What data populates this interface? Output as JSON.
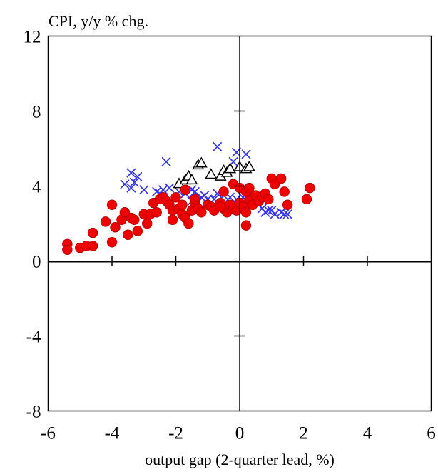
{
  "chart_data": {
    "type": "scatter",
    "ylabel": "CPI, y/y % chg.",
    "xlabel": "output gap (2-quarter lead, %)",
    "xlim": [
      -6,
      6
    ],
    "ylim": [
      -8,
      12
    ],
    "x_ticks": [
      -6,
      -4,
      -2,
      0,
      2,
      4,
      6
    ],
    "x_tick_labels": [
      "-6",
      "-4",
      "-2",
      "0",
      "2",
      "4",
      "6"
    ],
    "y_ticks": [
      -8,
      -4,
      0,
      4,
      8,
      12
    ],
    "y_tick_labels": [
      "-8",
      "-4",
      "0",
      "4",
      "8",
      "12"
    ],
    "grid": false,
    "legend": "none",
    "series": [
      {
        "marker": "cross",
        "color": "#3333ee",
        "points": [
          [
            -3.6,
            4.1
          ],
          [
            -3.4,
            4.7
          ],
          [
            -3.3,
            4.2
          ],
          [
            -3.2,
            4.5
          ],
          [
            -3.4,
            3.9
          ],
          [
            -3.0,
            3.8
          ],
          [
            -2.6,
            3.7
          ],
          [
            -2.5,
            3.6
          ],
          [
            -2.4,
            3.8
          ],
          [
            -2.2,
            3.9
          ],
          [
            -2.3,
            5.3
          ],
          [
            -1.9,
            3.7
          ],
          [
            -1.7,
            3.6
          ],
          [
            -1.5,
            3.8
          ],
          [
            -1.4,
            3.7
          ],
          [
            -1.2,
            3.4
          ],
          [
            -1.1,
            3.5
          ],
          [
            -1.0,
            3.3
          ],
          [
            -0.8,
            3.3
          ],
          [
            -0.7,
            3.6
          ],
          [
            -0.5,
            3.5
          ],
          [
            -0.3,
            3.4
          ],
          [
            -0.1,
            3.3
          ],
          [
            0.1,
            3.4
          ],
          [
            -0.7,
            6.1
          ],
          [
            -0.1,
            5.8
          ],
          [
            0.2,
            5.7
          ],
          [
            -0.2,
            5.3
          ],
          [
            0.6,
            3.0
          ],
          [
            0.7,
            2.8
          ],
          [
            0.8,
            2.6
          ],
          [
            1.0,
            2.7
          ],
          [
            1.1,
            2.5
          ],
          [
            1.3,
            2.6
          ],
          [
            1.4,
            2.5
          ],
          [
            1.5,
            2.5
          ],
          [
            0.9,
            2.7
          ],
          [
            -1.5,
            3.2
          ],
          [
            -0.4,
            2.8
          ]
        ]
      },
      {
        "marker": "triangle",
        "color": "#000000",
        "points": [
          [
            -1.9,
            4.1
          ],
          [
            -1.7,
            4.3
          ],
          [
            -1.6,
            4.5
          ],
          [
            -1.5,
            4.3
          ],
          [
            -1.3,
            5.1
          ],
          [
            -1.2,
            5.2
          ],
          [
            -0.9,
            4.6
          ],
          [
            -0.6,
            4.5
          ],
          [
            -0.5,
            4.8
          ],
          [
            -0.4,
            4.7
          ],
          [
            -0.3,
            4.9
          ],
          [
            0.0,
            5.0
          ],
          [
            0.2,
            4.9
          ],
          [
            0.3,
            5.0
          ]
        ]
      },
      {
        "marker": "circle",
        "color": "#ee0000",
        "points": [
          [
            -5.4,
            0.9
          ],
          [
            -5.4,
            0.6
          ],
          [
            -5.0,
            0.7
          ],
          [
            -4.8,
            0.8
          ],
          [
            -4.6,
            0.8
          ],
          [
            -4.6,
            1.5
          ],
          [
            -4.0,
            1.0
          ],
          [
            -3.9,
            1.8
          ],
          [
            -4.0,
            3.0
          ],
          [
            -4.2,
            2.1
          ],
          [
            -3.7,
            2.2
          ],
          [
            -3.6,
            2.6
          ],
          [
            -3.5,
            1.4
          ],
          [
            -3.4,
            2.3
          ],
          [
            -3.3,
            2.2
          ],
          [
            -3.2,
            1.6
          ],
          [
            -3.0,
            2.5
          ],
          [
            -2.9,
            2.0
          ],
          [
            -2.8,
            2.5
          ],
          [
            -2.7,
            3.1
          ],
          [
            -2.6,
            2.6
          ],
          [
            -2.5,
            3.3
          ],
          [
            -2.4,
            3.4
          ],
          [
            -2.3,
            3.2
          ],
          [
            -2.2,
            3.0
          ],
          [
            -2.1,
            2.7
          ],
          [
            -2.0,
            3.4
          ],
          [
            -2.1,
            2.2
          ],
          [
            -1.9,
            2.8
          ],
          [
            -1.8,
            2.5
          ],
          [
            -1.8,
            3.0
          ],
          [
            -1.7,
            2.3
          ],
          [
            -1.6,
            2.0
          ],
          [
            -1.7,
            3.8
          ],
          [
            -1.5,
            2.7
          ],
          [
            -1.4,
            3.1
          ],
          [
            -1.3,
            2.8
          ],
          [
            -1.2,
            2.6
          ],
          [
            -1.0,
            3.0
          ],
          [
            -0.9,
            2.9
          ],
          [
            -0.8,
            2.7
          ],
          [
            -0.6,
            3.1
          ],
          [
            -0.5,
            2.8
          ],
          [
            -0.4,
            2.6
          ],
          [
            -0.3,
            3.0
          ],
          [
            -0.2,
            2.8
          ],
          [
            -0.1,
            2.7
          ],
          [
            0.0,
            3.1
          ],
          [
            0.1,
            2.9
          ],
          [
            0.2,
            2.6
          ],
          [
            0.3,
            3.3
          ],
          [
            0.4,
            3.0
          ],
          [
            0.5,
            3.5
          ],
          [
            0.6,
            3.2
          ],
          [
            0.7,
            3.4
          ],
          [
            0.8,
            3.6
          ],
          [
            0.9,
            3.3
          ],
          [
            1.0,
            4.4
          ],
          [
            1.1,
            4.1
          ],
          [
            1.3,
            4.4
          ],
          [
            1.4,
            3.7
          ],
          [
            1.5,
            3.0
          ],
          [
            2.1,
            3.3
          ],
          [
            2.2,
            3.9
          ],
          [
            -0.5,
            3.7
          ],
          [
            -0.2,
            4.1
          ],
          [
            0.0,
            3.9
          ],
          [
            0.2,
            3.7
          ],
          [
            0.3,
            3.9
          ],
          [
            0.2,
            1.9
          ],
          [
            -1.4,
            3.3
          ],
          [
            -0.6,
            2.9
          ]
        ]
      }
    ]
  }
}
